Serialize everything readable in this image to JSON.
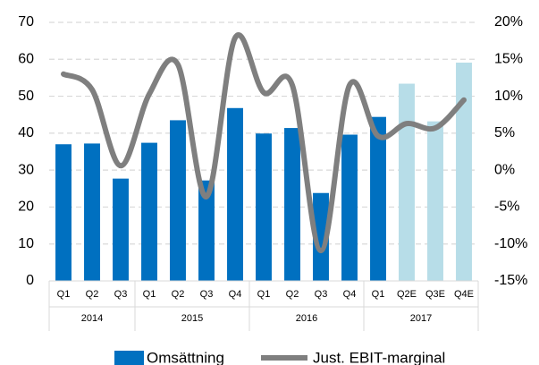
{
  "chart_data": {
    "type": "bar-line",
    "groups": [
      {
        "name": "2014",
        "categories": [
          "Q1",
          "Q2",
          "Q3"
        ]
      },
      {
        "name": "2015",
        "categories": [
          "Q1",
          "Q2",
          "Q3",
          "Q4"
        ]
      },
      {
        "name": "2016",
        "categories": [
          "Q1",
          "Q2",
          "Q3",
          "Q4"
        ]
      },
      {
        "name": "2017",
        "categories": [
          "Q1",
          "Q2E",
          "Q3E",
          "Q4E"
        ]
      }
    ],
    "series": [
      {
        "name": "Omsättning",
        "type": "bar",
        "colors": [
          "#0070c0",
          "#0070c0",
          "#0070c0",
          "#0070c0",
          "#0070c0",
          "#0070c0",
          "#0070c0",
          "#0070c0",
          "#0070c0",
          "#0070c0",
          "#0070c0",
          "#0070c0",
          "#b7dde8",
          "#b7dde8",
          "#b7dde8"
        ],
        "values": [
          37,
          37.2,
          27.7,
          37.4,
          43.5,
          27.2,
          46.8,
          39.9,
          41.4,
          23.8,
          39.6,
          44.4,
          53.4,
          43.2,
          59.1
        ]
      },
      {
        "name": "Just. EBIT-marginal",
        "type": "line",
        "axis": "y2",
        "color": "#7f7f7f",
        "values": [
          13,
          10.9,
          0.6,
          10.3,
          14.3,
          -3.6,
          17.9,
          10.5,
          11.5,
          -10.9,
          11.5,
          4.6,
          6.3,
          5.7,
          9.5
        ]
      }
    ],
    "ylim": [
      0,
      70
    ],
    "yticks": [
      0,
      10,
      20,
      30,
      40,
      50,
      60,
      70
    ],
    "y2lim": [
      -15,
      20
    ],
    "y2ticks": [
      {
        "value": -15,
        "label": "-15%"
      },
      {
        "value": -10,
        "label": "-10%"
      },
      {
        "value": -5,
        "label": "-5%"
      },
      {
        "value": 0,
        "label": "0%"
      },
      {
        "value": 5,
        "label": "5%"
      },
      {
        "value": 10,
        "label": "10%"
      },
      {
        "value": 15,
        "label": "15%"
      },
      {
        "value": 20,
        "label": "20%"
      }
    ],
    "grid": true,
    "legend": "bottom"
  }
}
